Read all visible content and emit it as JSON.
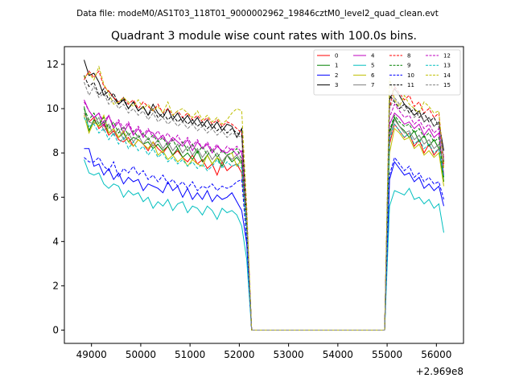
{
  "suptitle": "Data file: modeM0/AS1T03_118T01_9000002962_19846cztM0_level2_quad_clean.evt",
  "chart_data": {
    "type": "line",
    "title": "Quadrant 3 module wise count rates with 100.0s bins.",
    "xlabel": "",
    "ylabel": "",
    "x_offset_label": "+2.969e8",
    "xlim": [
      48450,
      56550
    ],
    "ylim": [
      -0.6,
      12.8
    ],
    "x_ticks": [
      49000,
      50000,
      51000,
      52000,
      53000,
      54000,
      55000,
      56000
    ],
    "x_tick_labels": [
      "49000",
      "50000",
      "51000",
      "52000",
      "53000",
      "54000",
      "55000",
      "56000"
    ],
    "y_ticks": [
      0,
      2,
      4,
      6,
      8,
      10,
      12
    ],
    "y_tick_labels": [
      "0",
      "2",
      "4",
      "6",
      "8",
      "10",
      "12"
    ],
    "x_segments": [
      {
        "start": 48850,
        "step": 100,
        "count": 34
      },
      {
        "start": 52250,
        "step": 100,
        "count": 28
      },
      {
        "start": 55050,
        "step": 100,
        "count": 12
      }
    ],
    "legend": {
      "location": "top-right",
      "columns": 4
    },
    "series": [
      {
        "name": "0",
        "color": "#ff0000",
        "dash": "solid",
        "seg1": [
          9.8,
          9.4,
          9.6,
          9.1,
          9.3,
          8.8,
          9.0,
          8.6,
          8.5,
          8.7,
          8.3,
          8.6,
          8.4,
          8.1,
          8.5,
          8.2,
          8.0,
          8.3,
          7.9,
          8.1,
          7.8,
          7.6,
          7.9,
          7.5,
          7.7,
          7.3,
          7.5,
          7.0,
          7.6,
          7.2,
          7.4,
          7.5,
          7.1,
          4.7
        ],
        "seg3": [
          8.4,
          9.3,
          9.0,
          8.7,
          8.9,
          8.3,
          8.6,
          8.0,
          8.4,
          7.9,
          8.2,
          7.9
        ]
      },
      {
        "name": "1",
        "color": "#008000",
        "dash": "solid",
        "seg1": [
          10.1,
          9.0,
          9.5,
          9.2,
          9.4,
          8.9,
          9.1,
          8.7,
          8.9,
          8.5,
          8.7,
          8.6,
          8.4,
          8.5,
          8.2,
          8.4,
          8.1,
          8.3,
          7.9,
          8.2,
          7.8,
          8.0,
          7.7,
          8.1,
          7.6,
          7.9,
          7.5,
          7.8,
          7.4,
          7.9,
          7.6,
          7.8,
          7.5,
          4.8
        ],
        "seg3": [
          8.9,
          9.6,
          9.2,
          9.0,
          8.7,
          9.0,
          8.5,
          8.8,
          8.3,
          8.6,
          8.2,
          6.7
        ]
      },
      {
        "name": "2",
        "color": "#0000ff",
        "dash": "solid",
        "seg1": [
          8.2,
          8.2,
          7.4,
          7.5,
          7.0,
          7.3,
          6.8,
          7.1,
          6.6,
          6.9,
          6.7,
          6.8,
          6.3,
          6.6,
          6.5,
          6.4,
          6.2,
          6.7,
          6.3,
          6.5,
          6.0,
          6.4,
          5.9,
          6.2,
          5.9,
          6.3,
          5.8,
          6.1,
          5.9,
          6.0,
          6.2,
          5.8,
          5.4,
          3.9
        ],
        "seg3": [
          6.8,
          7.6,
          7.3,
          7.0,
          7.1,
          6.7,
          6.9,
          6.4,
          6.6,
          6.3,
          6.5,
          5.6
        ]
      },
      {
        "name": "3",
        "color": "#000000",
        "dash": "solid",
        "seg1": [
          12.2,
          11.5,
          11.6,
          11.2,
          10.6,
          10.8,
          10.5,
          10.2,
          10.4,
          10.0,
          10.3,
          9.9,
          10.1,
          9.7,
          10.2,
          9.8,
          9.6,
          10.0,
          9.5,
          9.8,
          9.4,
          9.7,
          9.3,
          9.6,
          9.2,
          9.5,
          9.1,
          9.4,
          9.0,
          9.3,
          9.2,
          8.7,
          9.1,
          5.0
        ],
        "seg3": [
          10.4,
          10.9,
          10.6,
          10.2,
          10.0,
          9.7,
          9.9,
          9.4,
          9.6,
          9.2,
          9.4,
          8.1
        ]
      },
      {
        "name": "4",
        "color": "#bf00bf",
        "dash": "solid",
        "seg1": [
          10.4,
          9.9,
          9.6,
          9.8,
          9.2,
          9.7,
          9.1,
          9.4,
          8.9,
          9.3,
          8.8,
          9.1,
          8.7,
          9.0,
          8.9,
          8.6,
          8.8,
          8.4,
          8.7,
          8.5,
          8.3,
          8.6,
          8.1,
          8.5,
          8.2,
          8.4,
          8.0,
          8.3,
          8.1,
          8.0,
          8.2,
          7.9,
          8.1,
          5.0
        ],
        "seg3": [
          9.3,
          9.8,
          9.6,
          9.3,
          9.4,
          9.1,
          9.3,
          8.8,
          9.1,
          8.7,
          8.9,
          7.0
        ]
      },
      {
        "name": "5",
        "color": "#00bfbf",
        "dash": "solid",
        "seg1": [
          7.7,
          7.1,
          7.0,
          7.1,
          6.6,
          6.4,
          6.6,
          6.5,
          6.0,
          6.3,
          6.1,
          6.2,
          5.8,
          6.0,
          5.5,
          5.8,
          5.6,
          5.9,
          5.4,
          5.7,
          5.8,
          5.3,
          5.6,
          5.5,
          5.2,
          5.6,
          5.4,
          5.0,
          5.5,
          5.3,
          5.4,
          5.2,
          4.7,
          3.2
        ],
        "seg3": [
          5.6,
          6.3,
          6.2,
          6.1,
          6.4,
          5.9,
          6.0,
          5.7,
          5.9,
          5.5,
          5.7,
          4.4
        ]
      },
      {
        "name": "6",
        "color": "#bfbf00",
        "dash": "solid",
        "seg1": [
          9.7,
          8.9,
          9.4,
          9.2,
          9.7,
          8.9,
          9.1,
          8.7,
          9.0,
          8.5,
          8.3,
          8.6,
          8.4,
          8.2,
          8.5,
          7.9,
          8.1,
          7.7,
          7.9,
          7.6,
          7.8,
          7.4,
          7.7,
          7.5,
          7.4,
          7.9,
          7.5,
          7.8,
          7.6,
          7.9,
          8.0,
          7.4,
          7.7,
          4.4
        ],
        "seg3": [
          8.0,
          9.1,
          8.9,
          8.6,
          8.7,
          8.2,
          8.4,
          7.9,
          8.1,
          7.8,
          8.0,
          6.5
        ]
      },
      {
        "name": "7",
        "color": "#808080",
        "dash": "solid",
        "seg1": [
          9.8,
          9.4,
          9.3,
          9.6,
          9.0,
          9.3,
          8.8,
          9.1,
          8.6,
          8.9,
          8.5,
          8.8,
          8.4,
          8.7,
          8.3,
          8.6,
          8.2,
          8.5,
          8.1,
          8.4,
          8.0,
          8.3,
          7.9,
          8.2,
          7.8,
          8.1,
          7.7,
          8.0,
          7.6,
          7.9,
          7.7,
          7.9,
          7.6,
          4.6
        ],
        "seg3": [
          8.7,
          9.5,
          9.2,
          8.9,
          9.0,
          8.6,
          8.8,
          8.4,
          8.6,
          8.2,
          8.4,
          7.4
        ]
      },
      {
        "name": "8",
        "color": "#ff0000",
        "dash": "dashed",
        "seg1": [
          11.3,
          11.7,
          11.4,
          11.7,
          11.0,
          10.8,
          10.5,
          10.3,
          10.5,
          10.2,
          10.4,
          10.0,
          10.3,
          10.1,
          9.9,
          10.2,
          9.8,
          10.0,
          9.7,
          9.9,
          9.6,
          9.8,
          9.5,
          9.7,
          9.4,
          9.6,
          9.3,
          9.5,
          9.2,
          9.4,
          9.3,
          9.1,
          8.9,
          5.2
        ],
        "seg3": [
          10.0,
          11.0,
          10.7,
          10.4,
          10.6,
          10.1,
          10.3,
          9.8,
          10.0,
          9.6,
          9.8,
          7.5
        ]
      },
      {
        "name": "9",
        "color": "#008000",
        "dash": "dashed",
        "seg1": [
          10.0,
          9.5,
          9.8,
          9.3,
          9.6,
          9.1,
          9.4,
          8.9,
          9.2,
          8.8,
          9.0,
          8.7,
          8.9,
          8.6,
          8.8,
          8.5,
          8.7,
          8.3,
          8.6,
          8.2,
          8.5,
          8.1,
          8.4,
          8.0,
          8.3,
          7.9,
          8.2,
          7.8,
          8.1,
          7.9,
          8.0,
          8.2,
          7.7,
          4.7
        ],
        "seg3": [
          9.0,
          9.7,
          9.4,
          9.2,
          9.3,
          8.9,
          9.1,
          8.7,
          8.9,
          8.5,
          8.7,
          6.9
        ]
      },
      {
        "name": "10",
        "color": "#0000ff",
        "dash": "dashed",
        "seg1": [
          7.8,
          7.6,
          7.6,
          7.8,
          7.4,
          7.2,
          7.6,
          6.9,
          7.3,
          7.1,
          7.4,
          7.0,
          7.2,
          6.8,
          7.0,
          6.7,
          7.0,
          6.6,
          6.8,
          6.5,
          6.7,
          6.4,
          6.7,
          6.3,
          6.5,
          6.4,
          6.6,
          6.3,
          6.5,
          6.4,
          6.5,
          6.7,
          6.8,
          4.0
        ],
        "seg3": [
          7.0,
          7.8,
          7.5,
          7.2,
          7.4,
          6.9,
          7.1,
          6.7,
          6.9,
          6.6,
          6.7,
          5.9
        ]
      },
      {
        "name": "11",
        "color": "#000000",
        "dash": "dashed",
        "seg1": [
          11.5,
          11.0,
          11.2,
          10.6,
          10.9,
          10.4,
          10.7,
          10.2,
          10.5,
          10.0,
          10.3,
          9.9,
          10.1,
          9.7,
          10.0,
          9.6,
          9.8,
          9.5,
          9.7,
          9.4,
          9.6,
          9.3,
          9.5,
          9.2,
          9.4,
          9.1,
          9.3,
          9.0,
          9.2,
          8.9,
          9.1,
          8.9,
          8.8,
          5.1
        ],
        "seg3": [
          10.6,
          10.3,
          10.0,
          10.2,
          9.8,
          10.0,
          9.6,
          9.8,
          9.4,
          9.6,
          9.2,
          7.6
        ]
      },
      {
        "name": "12",
        "color": "#bf00bf",
        "dash": "dashed",
        "seg1": [
          10.3,
          9.9,
          9.6,
          9.8,
          9.4,
          9.7,
          9.2,
          9.5,
          9.1,
          9.4,
          8.9,
          9.2,
          8.8,
          9.1,
          8.7,
          9.0,
          8.6,
          8.9,
          8.5,
          8.8,
          8.4,
          8.7,
          8.3,
          8.6,
          8.2,
          8.5,
          8.1,
          8.4,
          8.0,
          8.3,
          8.1,
          8.3,
          8.0,
          5.0
        ],
        "seg3": [
          9.6,
          10.2,
          9.9,
          9.6,
          9.7,
          9.3,
          9.5,
          9.1,
          9.3,
          8.9,
          9.1,
          7.8
        ]
      },
      {
        "name": "13",
        "color": "#00bfbf",
        "dash": "dashed",
        "seg1": [
          9.6,
          9.2,
          9.3,
          8.9,
          9.1,
          8.6,
          8.9,
          8.4,
          8.7,
          8.2,
          8.5,
          8.1,
          8.3,
          7.9,
          8.2,
          7.8,
          8.0,
          7.6,
          7.8,
          7.5,
          7.7,
          7.4,
          7.6,
          7.3,
          7.5,
          7.2,
          7.4,
          7.7,
          7.3,
          7.6,
          7.4,
          7.5,
          7.3,
          4.5
        ],
        "seg3": [
          8.6,
          9.3,
          9.0,
          8.7,
          8.9,
          8.4,
          8.6,
          8.2,
          8.4,
          8.0,
          8.2,
          6.9
        ]
      },
      {
        "name": "14",
        "color": "#bfbf00",
        "dash": "dashed",
        "seg1": [
          11.4,
          11.6,
          11.3,
          11.9,
          11.1,
          10.7,
          10.2,
          10.3,
          10.5,
          10.3,
          10.1,
          10.4,
          10.0,
          10.2,
          9.9,
          10.1,
          9.8,
          10.3,
          9.7,
          9.9,
          10.0,
          9.8,
          9.6,
          9.9,
          9.5,
          9.7,
          9.4,
          9.6,
          9.3,
          9.5,
          9.8,
          10.0,
          9.9,
          5.6
        ],
        "seg3": [
          11.4,
          10.4,
          10.1,
          10.6,
          10.2,
          10.0,
          9.8,
          10.3,
          10.1,
          9.8,
          9.9,
          7.3
        ]
      },
      {
        "name": "15",
        "color": "#808080",
        "dash": "dashed",
        "seg1": [
          11.2,
          10.6,
          11.0,
          10.5,
          10.7,
          10.2,
          10.4,
          10.0,
          10.2,
          9.8,
          10.0,
          9.7,
          9.9,
          9.5,
          9.8,
          9.4,
          9.6,
          9.3,
          9.5,
          9.2,
          9.4,
          9.1,
          9.3,
          9.0,
          9.2,
          8.9,
          9.1,
          8.8,
          9.0,
          8.7,
          8.9,
          8.8,
          8.7,
          4.9
        ],
        "seg3": [
          10.0,
          10.5,
          10.2,
          9.9,
          10.1,
          9.6,
          9.8,
          9.4,
          9.6,
          9.2,
          9.4,
          7.7
        ]
      }
    ]
  }
}
